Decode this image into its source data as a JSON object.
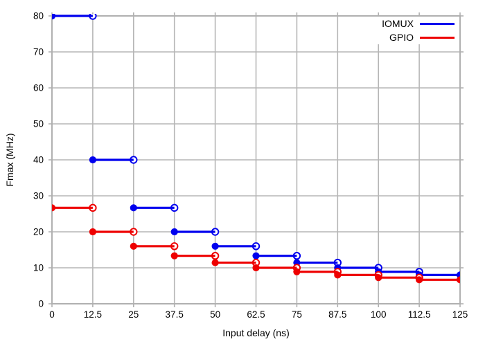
{
  "axes": {
    "xlabel": "Input delay (ns)",
    "ylabel": "Fmax (MHz)"
  },
  "legend": {
    "position": "top-right-inside",
    "entries": [
      {
        "label": "IOMUX",
        "color": "#0000ee"
      },
      {
        "label": "GPIO",
        "color": "#ee0000"
      }
    ]
  },
  "chart_data": {
    "type": "line",
    "subtype": "horizontal-step-segments",
    "title": "",
    "xlabel": "Input delay (ns)",
    "ylabel": "Fmax (MHz)",
    "xlim": [
      0,
      125
    ],
    "ylim": [
      0,
      80
    ],
    "xticks": [
      0,
      12.5,
      25,
      37.5,
      50,
      62.5,
      75,
      87.5,
      100,
      112.5,
      125
    ],
    "xtick_labels": [
      "0",
      "12.5",
      "25",
      "37.5",
      "50",
      "62.5",
      "75",
      "87.5",
      "100",
      "112.5",
      "125"
    ],
    "yticks": [
      0,
      10,
      20,
      30,
      40,
      50,
      60,
      70,
      80
    ],
    "ytick_labels": [
      "0",
      "10",
      "20",
      "30",
      "40",
      "50",
      "60",
      "70",
      "80"
    ],
    "grid": true,
    "marker_style": "filled circle at segment start, open circle at segment end, markers clipped at plot borders",
    "colors": {
      "grid": "#b6b6b6",
      "border": "#b0b0b0",
      "tick": "#b0b0b0",
      "text": "#000000",
      "background": "#ffffff"
    },
    "series": [
      {
        "name": "IOMUX",
        "color": "#0000ee",
        "segments": [
          {
            "x0": 0,
            "x1": 12.5,
            "y": 80
          },
          {
            "x0": 12.5,
            "x1": 25,
            "y": 40
          },
          {
            "x0": 25,
            "x1": 37.5,
            "y": 26.67
          },
          {
            "x0": 37.5,
            "x1": 50,
            "y": 20
          },
          {
            "x0": 50,
            "x1": 62.5,
            "y": 16
          },
          {
            "x0": 62.5,
            "x1": 75,
            "y": 13.33
          },
          {
            "x0": 75,
            "x1": 87.5,
            "y": 11.43
          },
          {
            "x0": 87.5,
            "x1": 100,
            "y": 10
          },
          {
            "x0": 100,
            "x1": 112.5,
            "y": 8.89
          },
          {
            "x0": 112.5,
            "x1": 125,
            "y": 8
          }
        ]
      },
      {
        "name": "GPIO",
        "color": "#ee0000",
        "segments": [
          {
            "x0": 0,
            "x1": 12.5,
            "y": 26.67
          },
          {
            "x0": 12.5,
            "x1": 25,
            "y": 20
          },
          {
            "x0": 25,
            "x1": 37.5,
            "y": 16
          },
          {
            "x0": 37.5,
            "x1": 50,
            "y": 13.33
          },
          {
            "x0": 50,
            "x1": 62.5,
            "y": 11.43
          },
          {
            "x0": 62.5,
            "x1": 75,
            "y": 10
          },
          {
            "x0": 75,
            "x1": 87.5,
            "y": 8.89
          },
          {
            "x0": 87.5,
            "x1": 100,
            "y": 8
          },
          {
            "x0": 100,
            "x1": 112.5,
            "y": 7.27
          },
          {
            "x0": 112.5,
            "x1": 125,
            "y": 6.67
          }
        ]
      }
    ]
  }
}
